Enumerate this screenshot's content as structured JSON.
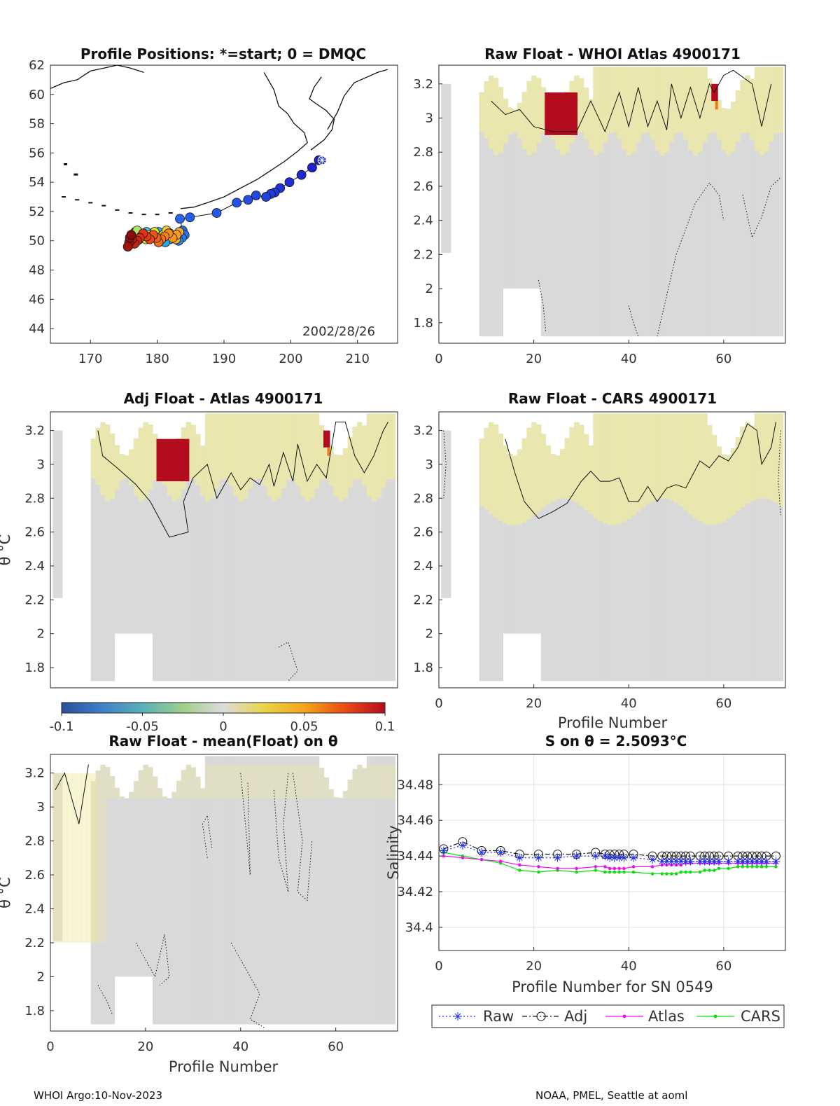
{
  "footer": {
    "left": "WHOI Argo:10-Nov-2023",
    "right": "NOAA, PMEL, Seattle at aoml"
  },
  "colors": {
    "ocean_bg": "#d9d9d9",
    "warm": "#eee9a0",
    "anomaly": "#b30c1e",
    "raw": "#2233ee",
    "adj": "#111111",
    "atlas": "#ee11ee",
    "cars": "#11dd11"
  },
  "colorbar": {
    "ticks": [
      "-0.1",
      "-0.05",
      "0",
      "0.05",
      "0.1"
    ],
    "tick_values": [
      -0.1,
      -0.05,
      0,
      0.05,
      0.1
    ],
    "range": [
      -0.1,
      0.1
    ],
    "stops": [
      "#2b4f9a",
      "#3f7fc6",
      "#5ab0b8",
      "#9fcf8a",
      "#dcdcdc",
      "#e9d44a",
      "#f3a51c",
      "#ea4c16",
      "#b30c1e"
    ]
  },
  "chart_data": [
    {
      "type": "scatter",
      "id": "map",
      "title": "Profile Positions: *=start; 0 = DMQC",
      "xlim": [
        164,
        216
      ],
      "ylim": [
        43,
        62
      ],
      "xticks": [
        "170",
        "180",
        "190",
        "200",
        "210"
      ],
      "xtick_values": [
        170,
        180,
        190,
        200,
        210
      ],
      "yticks": [
        "44",
        "46",
        "48",
        "50",
        "52",
        "54",
        "56",
        "58",
        "60",
        "62"
      ],
      "ytick_values": [
        44,
        46,
        48,
        50,
        52,
        54,
        56,
        58,
        60,
        62
      ],
      "annotation": "2002/28/26",
      "start": {
        "lon": 204.7,
        "lat": 55.5
      },
      "positions": {
        "lon": [
          204.2,
          203.2,
          201.6,
          199.8,
          198.4,
          197.6,
          197.0,
          196.3,
          194.8,
          193.6,
          191.9,
          188.9,
          184.9,
          183.4,
          183.8,
          184.1,
          183.7,
          183.2,
          182.6,
          181.9,
          181.2,
          180.6,
          180.2,
          179.7,
          179.2,
          178.9,
          178.4,
          178.0,
          177.6,
          177.3,
          177.0,
          176.7,
          176.4,
          176.1,
          175.9,
          176.2,
          176.5,
          177.0,
          177.6,
          178.3,
          179.0,
          179.6,
          180.2,
          180.9,
          181.4,
          181.9,
          182.4,
          182.8,
          183.3,
          182.9,
          182.3,
          181.7,
          181.1,
          180.6,
          180.2,
          179.9,
          179.4,
          178.9,
          178.4,
          177.9,
          177.4,
          177.0,
          176.6,
          176.2,
          175.8,
          175.6,
          175.9,
          176.1
        ],
        "lat": [
          55.5,
          55.0,
          54.5,
          54.0,
          53.6,
          53.3,
          53.2,
          53.0,
          53.1,
          52.8,
          52.6,
          51.9,
          51.6,
          51.5,
          50.7,
          50.4,
          50.2,
          50.0,
          50.3,
          50.1,
          49.9,
          50.3,
          50.6,
          50.2,
          50.5,
          50.3,
          50.6,
          50.3,
          50.2,
          50.1,
          50.4,
          50.6,
          50.3,
          50.2,
          50.0,
          49.8,
          50.5,
          50.7,
          50.3,
          50.1,
          50.4,
          50.6,
          50.2,
          50.4,
          50.7,
          50.5,
          50.3,
          50.1,
          50.6,
          50.4,
          50.2,
          50.5,
          50.3,
          50.1,
          49.9,
          50.2,
          50.4,
          50.1,
          50.3,
          50.5,
          50.2,
          50.0,
          49.8,
          50.1,
          49.9,
          49.6,
          50.2,
          50.4
        ]
      }
    },
    {
      "type": "heatmap",
      "id": "h1",
      "title": "Raw Float - WHOI Atlas  4900171",
      "xlim": [
        0,
        73
      ],
      "ylim": [
        1.68,
        3.31
      ],
      "xticks": [
        "0",
        "20",
        "40",
        "60"
      ],
      "xtick_values": [
        0,
        20,
        40,
        60
      ],
      "yticks": [
        "3.2",
        "3",
        "2.8",
        "2.6",
        "2.4",
        "2.2",
        "2",
        "1.8"
      ],
      "ytick_values": [
        3.2,
        3.0,
        2.8,
        2.6,
        2.4,
        2.2,
        2.0,
        1.8
      ],
      "xlabel": "",
      "ylabel": ""
    },
    {
      "type": "heatmap",
      "id": "h2",
      "title": "Adj Float - Atlas  4900171",
      "xlim": [
        0,
        73
      ],
      "ylim": [
        1.68,
        3.31
      ],
      "xticks": [],
      "xtick_values": [],
      "yticks": [
        "3.2",
        "3",
        "2.8",
        "2.6",
        "2.4",
        "2.2",
        "2",
        "1.8"
      ],
      "ytick_values": [
        3.2,
        3.0,
        2.8,
        2.6,
        2.4,
        2.2,
        2.0,
        1.8
      ],
      "xlabel": "",
      "ylabel": "θ °C"
    },
    {
      "type": "heatmap",
      "id": "h3",
      "title": "Raw Float - CARS  4900171",
      "xlim": [
        0,
        73
      ],
      "ylim": [
        1.68,
        3.31
      ],
      "xticks": [
        "0",
        "20",
        "40",
        "60"
      ],
      "xtick_values": [
        0,
        20,
        40,
        60
      ],
      "yticks": [
        "3.2",
        "3",
        "2.8",
        "2.6",
        "2.4",
        "2.2",
        "2",
        "1.8"
      ],
      "ytick_values": [
        3.2,
        3.0,
        2.8,
        2.6,
        2.4,
        2.2,
        2.0,
        1.8
      ],
      "xlabel": "Profile Number",
      "ylabel": ""
    },
    {
      "type": "heatmap",
      "id": "h4",
      "title": "Raw Float - mean(Float) on θ",
      "xlim": [
        0,
        73
      ],
      "ylim": [
        1.68,
        3.31
      ],
      "xticks": [
        "0",
        "20",
        "40",
        "60"
      ],
      "xtick_values": [
        0,
        20,
        40,
        60
      ],
      "yticks": [
        "3.2",
        "3",
        "2.8",
        "2.6",
        "2.4",
        "2.2",
        "2",
        "1.8"
      ],
      "ytick_values": [
        3.2,
        3.0,
        2.8,
        2.6,
        2.4,
        2.2,
        2.0,
        1.8
      ],
      "xlabel": "Profile Number",
      "ylabel": "θ °C"
    },
    {
      "type": "line",
      "id": "salinity",
      "title": "S on θ = 2.5093°C",
      "xlim": [
        0,
        73
      ],
      "ylim": [
        34.387,
        34.497
      ],
      "xticks": [
        "0",
        "20",
        "40",
        "60"
      ],
      "xtick_values": [
        0,
        20,
        40,
        60
      ],
      "yticks": [
        "34.48",
        "34.46",
        "34.44",
        "34.42",
        "34.4"
      ],
      "ytick_values": [
        34.48,
        34.46,
        34.44,
        34.42,
        34.4
      ],
      "xlabel": "Profile Number for SN 0549",
      "ylabel": "Salinity",
      "grid": true,
      "legend": {
        "placement": "bottom",
        "labels": [
          "Raw",
          "Adj",
          "Atlas",
          "CARS"
        ]
      },
      "x": [
        1,
        5,
        9,
        13,
        17,
        21,
        25,
        29,
        33,
        35,
        36,
        37,
        38,
        39,
        41,
        45,
        47,
        48,
        49,
        50,
        51,
        52,
        53,
        55,
        56,
        57,
        58,
        59,
        61,
        63,
        64,
        65,
        66,
        67,
        68,
        69,
        71
      ],
      "series": [
        {
          "name": "Raw",
          "values": [
            34.443,
            34.446,
            34.442,
            34.442,
            34.439,
            34.439,
            34.439,
            34.44,
            34.44,
            34.44,
            34.439,
            34.439,
            34.439,
            34.439,
            34.439,
            34.438,
            34.437,
            34.437,
            34.437,
            34.437,
            34.437,
            34.437,
            34.437,
            34.437,
            34.437,
            34.437,
            34.437,
            34.437,
            34.437,
            34.437,
            34.437,
            34.437,
            34.437,
            34.437,
            34.437,
            34.437,
            34.437
          ]
        },
        {
          "name": "Adj",
          "values": [
            34.444,
            34.448,
            34.443,
            34.443,
            34.441,
            34.441,
            34.441,
            34.441,
            34.442,
            34.441,
            34.441,
            34.441,
            34.441,
            34.441,
            34.441,
            34.44,
            34.44,
            34.44,
            34.44,
            34.44,
            34.44,
            34.44,
            34.44,
            34.44,
            34.44,
            34.44,
            34.44,
            34.44,
            34.44,
            34.44,
            34.44,
            34.44,
            34.44,
            34.44,
            34.44,
            34.44,
            34.44
          ]
        },
        {
          "name": "Atlas",
          "values": [
            34.44,
            34.439,
            34.438,
            34.437,
            34.435,
            34.434,
            34.433,
            34.433,
            34.434,
            34.434,
            34.433,
            34.433,
            34.433,
            34.433,
            34.434,
            34.434,
            34.435,
            34.435,
            34.435,
            34.435,
            34.435,
            34.436,
            34.436,
            34.436,
            34.436,
            34.436,
            34.436,
            34.436,
            34.436,
            34.436,
            34.436,
            34.436,
            34.436,
            34.436,
            34.436,
            34.436,
            34.436
          ]
        },
        {
          "name": "CARS",
          "values": [
            34.442,
            34.44,
            34.438,
            34.436,
            34.432,
            34.431,
            34.432,
            34.431,
            34.432,
            34.431,
            34.431,
            34.431,
            34.431,
            34.431,
            34.431,
            34.43,
            34.43,
            34.43,
            34.43,
            34.43,
            34.431,
            34.431,
            34.431,
            34.431,
            34.432,
            34.432,
            34.432,
            34.433,
            34.433,
            34.434,
            34.434,
            34.434,
            34.434,
            34.434,
            34.434,
            34.434,
            34.434
          ]
        }
      ]
    }
  ]
}
